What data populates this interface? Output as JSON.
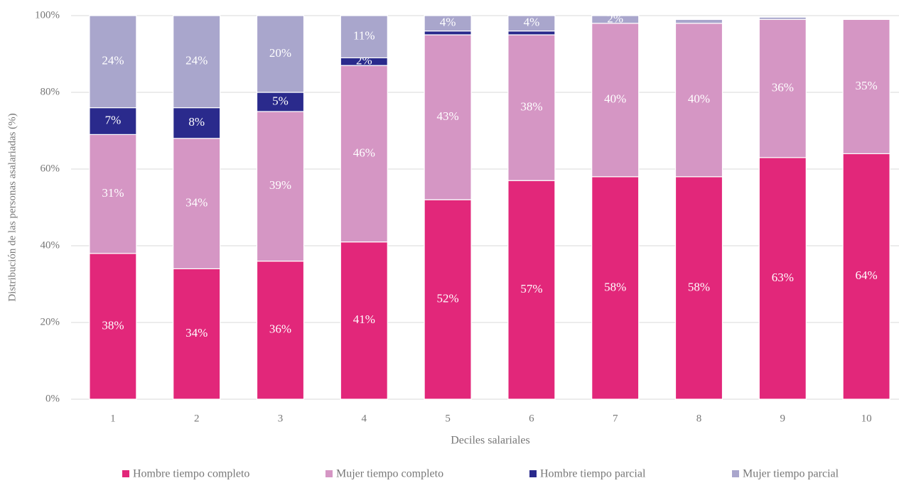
{
  "chart_data": {
    "type": "stacked_bar",
    "ylabel": "Distribución de las personas asalariadas (%)",
    "xlabel": "Deciles salariales",
    "categories": [
      "1",
      "2",
      "3",
      "4",
      "5",
      "6",
      "7",
      "8",
      "9",
      "10"
    ],
    "ylim": [
      0,
      100
    ],
    "yticks": [
      {
        "value": 0,
        "label": "0%"
      },
      {
        "value": 20,
        "label": "20%"
      },
      {
        "value": 40,
        "label": "40%"
      },
      {
        "value": 60,
        "label": "60%"
      },
      {
        "value": 80,
        "label": "80%"
      },
      {
        "value": 100,
        "label": "100%"
      }
    ],
    "grid": true,
    "legend": "bottom",
    "series": [
      {
        "name": "Hombre tiempo completo",
        "color": "#e2277a",
        "values": [
          38,
          34,
          36,
          41,
          52,
          57,
          58,
          58,
          63,
          64
        ],
        "value_labels": [
          "38%",
          "34%",
          "36%",
          "41%",
          "52%",
          "57%",
          "58%",
          "58%",
          "63%",
          "64%"
        ]
      },
      {
        "name": "Mujer tiempo completo",
        "color": "#d596c4",
        "values": [
          31,
          34,
          39,
          46,
          43,
          38,
          40,
          40,
          36,
          35
        ],
        "value_labels": [
          "31%",
          "34%",
          "39%",
          "46%",
          "43%",
          "38%",
          "40%",
          "40%",
          "36%",
          "35%"
        ]
      },
      {
        "name": "Hombre tiempo parcial",
        "color": "#2a2a8c",
        "values": [
          7,
          8,
          5,
          2,
          1,
          1,
          0,
          0,
          0,
          0
        ],
        "value_labels": [
          "7%",
          "8%",
          "5%",
          "2%",
          null,
          null,
          null,
          null,
          null,
          null
        ]
      },
      {
        "name": "Mujer tiempo parcial",
        "color": "#a9a6cc",
        "values": [
          24,
          24,
          20,
          11,
          4,
          4,
          2,
          1,
          0.6,
          0
        ],
        "value_labels": [
          "24%",
          "24%",
          "20%",
          "11%",
          "4%",
          "4%",
          "2%",
          null,
          null,
          null
        ]
      }
    ]
  }
}
